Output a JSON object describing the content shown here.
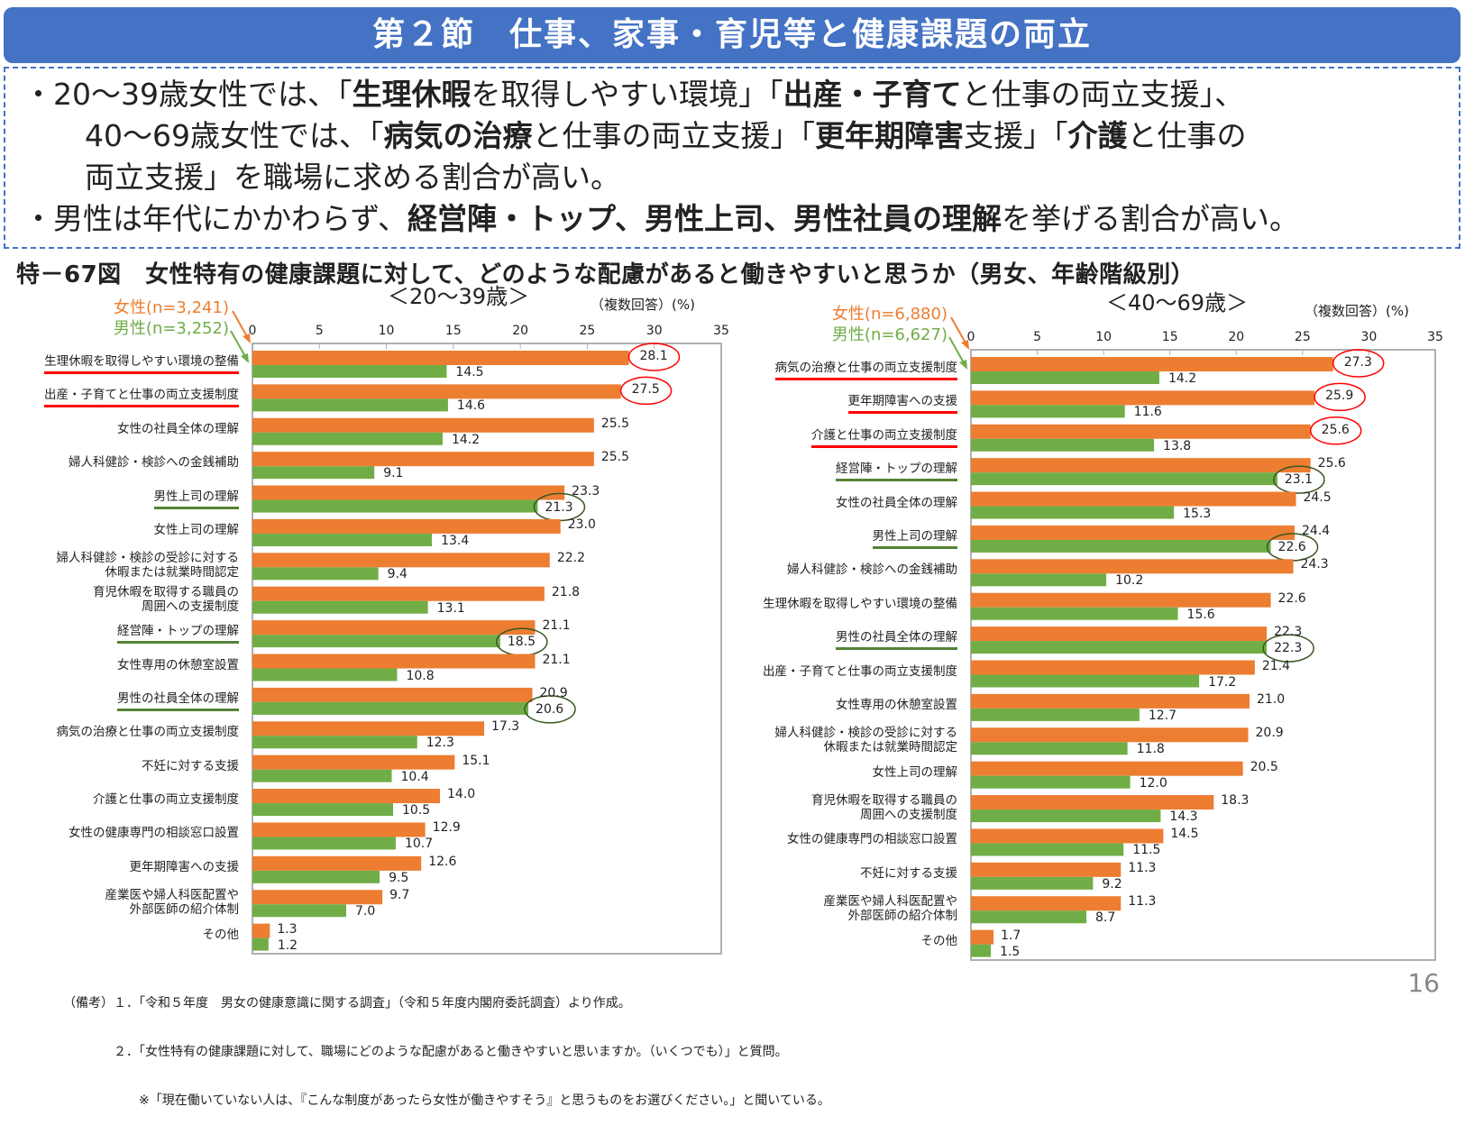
{
  "header": {
    "title": "第２節　仕事、家事・育児等と健康課題の両立"
  },
  "summary": {
    "bullet1_lines": [
      [
        {
          "t": "・20～39歳女性では、「",
          "b": false
        },
        {
          "t": "生理休暇",
          "b": true
        },
        {
          "t": "を取得しやすい環境」「",
          "b": false
        },
        {
          "t": "出産・子育て",
          "b": true
        },
        {
          "t": "と仕事の両立支援」、",
          "b": false
        }
      ],
      [
        {
          "t": "40～69歳女性では、「",
          "b": false
        },
        {
          "t": "病気の治療",
          "b": true
        },
        {
          "t": "と仕事の両立支援」「",
          "b": false
        },
        {
          "t": "更年期障害",
          "b": true
        },
        {
          "t": "支援」「",
          "b": false
        },
        {
          "t": "介護",
          "b": true
        },
        {
          "t": "と仕事の",
          "b": false
        }
      ],
      [
        {
          "t": "両立支援」を職場に求める割合が高い。",
          "b": false
        }
      ]
    ],
    "bullet2": [
      {
        "t": "・男性は年代にかかわらず、",
        "b": false
      },
      {
        "t": "経営陣・トップ、男性上司、男性社員の理解",
        "b": true
      },
      {
        "t": "を挙げる割合が高い。",
        "b": false
      }
    ]
  },
  "figure_title": "特－67図　女性特有の健康課題に対して、どのような配慮があると働きやすいと思うか（男女、年齢階級別）",
  "colors": {
    "female": "#ED7D31",
    "male": "#70AD47",
    "header": "#4472C4",
    "highlight_female": "#FF0000",
    "highlight_male": "#385723"
  },
  "chart_data": [
    {
      "type": "bar",
      "orientation": "horizontal",
      "title": "＜20～39歳＞",
      "unit": "（複数回答）(%)",
      "xlim": [
        0,
        35
      ],
      "ticks": [
        "0",
        "5",
        "10",
        "15",
        "20",
        "25",
        "30",
        "35"
      ],
      "legend": {
        "female": "女性(n=3,241)",
        "male": "男性(n=3,252)"
      },
      "categories": [
        "生理休暇を取得しやすい環境の整備",
        "出産・子育てと仕事の両立支援制度",
        "女性の社員全体の理解",
        "婦人科健診・検診への金銭補助",
        "男性上司の理解",
        "女性上司の理解",
        "婦人科健診・検診の受診に対する\n休暇または就業時間認定",
        "育児休暇を取得する職員の\n周囲への支援制度",
        "経営陣・トップの理解",
        "女性専用の休憩室設置",
        "男性の社員全体の理解",
        "病気の治療と仕事の両立支援制度",
        "不妊に対する支援",
        "介護と仕事の両立支援制度",
        "女性の健康専門の相談窓口設置",
        "更年期障害への支援",
        "産業医や婦人科医配置や\n外部医師の紹介体制",
        "その他"
      ],
      "series": [
        {
          "name": "女性(n=3,241)",
          "values": [
            28.1,
            27.5,
            25.5,
            25.5,
            23.3,
            23.0,
            22.2,
            21.8,
            21.1,
            21.1,
            20.9,
            17.3,
            15.1,
            14.0,
            12.9,
            12.6,
            9.7,
            1.3
          ]
        },
        {
          "name": "男性(n=3,252)",
          "values": [
            14.5,
            14.6,
            14.2,
            9.1,
            21.3,
            13.4,
            9.4,
            13.1,
            18.5,
            10.8,
            20.6,
            12.3,
            10.4,
            10.5,
            10.7,
            9.5,
            7.0,
            1.2
          ]
        }
      ],
      "highlight": [
        "female",
        "female",
        "",
        "",
        "male",
        "",
        "",
        "",
        "male",
        "",
        "male",
        "",
        "",
        "",
        "",
        "",
        "",
        ""
      ]
    },
    {
      "type": "bar",
      "orientation": "horizontal",
      "title": "＜40～69歳＞",
      "unit": "（複数回答）(%)",
      "xlim": [
        0,
        35
      ],
      "ticks": [
        "0",
        "5",
        "10",
        "15",
        "20",
        "25",
        "30",
        "35"
      ],
      "legend": {
        "female": "女性(n=6,880)",
        "male": "男性(n=6,627)"
      },
      "categories": [
        "病気の治療と仕事の両立支援制度",
        "更年期障害への支援",
        "介護と仕事の両立支援制度",
        "経営陣・トップの理解",
        "女性の社員全体の理解",
        "男性上司の理解",
        "婦人科健診・検診への金銭補助",
        "生理休暇を取得しやすい環境の整備",
        "男性の社員全体の理解",
        "出産・子育てと仕事の両立支援制度",
        "女性専用の休憩室設置",
        "婦人科健診・検診の受診に対する\n休暇または就業時間認定",
        "女性上司の理解",
        "育児休暇を取得する職員の\n周囲への支援制度",
        "女性の健康専門の相談窓口設置",
        "不妊に対する支援",
        "産業医や婦人科医配置や\n外部医師の紹介体制",
        "その他"
      ],
      "series": [
        {
          "name": "女性(n=6,880)",
          "values": [
            27.3,
            25.9,
            25.6,
            25.6,
            24.5,
            24.4,
            24.3,
            22.6,
            22.3,
            21.4,
            21.0,
            20.9,
            20.5,
            18.3,
            14.5,
            11.3,
            11.3,
            1.7
          ]
        },
        {
          "name": "男性(n=6,627)",
          "values": [
            14.2,
            11.6,
            13.8,
            23.1,
            15.3,
            22.6,
            10.2,
            15.6,
            22.3,
            17.2,
            12.7,
            11.8,
            12.0,
            14.3,
            11.5,
            9.2,
            8.7,
            1.5
          ]
        }
      ],
      "highlight": [
        "female",
        "female",
        "female",
        "male",
        "",
        "male",
        "",
        "",
        "male",
        "",
        "",
        "",
        "",
        "",
        "",
        "",
        "",
        ""
      ]
    }
  ],
  "notes": [
    "（備考）１．「令和５年度　男女の健康意識に関する調査」（令和５年度内閣府委託調査）より作成。",
    "　　　　２．「女性特有の健康課題に対して、職場にどのような配慮があると働きやすいと思いますか。（いくつでも）」と質問。",
    "　　　　　　※「現在働いていない人は、『こんな制度があったら女性が働きやすそう』と思うものをお選びください。」と聞いている。"
  ],
  "page_number": "16"
}
